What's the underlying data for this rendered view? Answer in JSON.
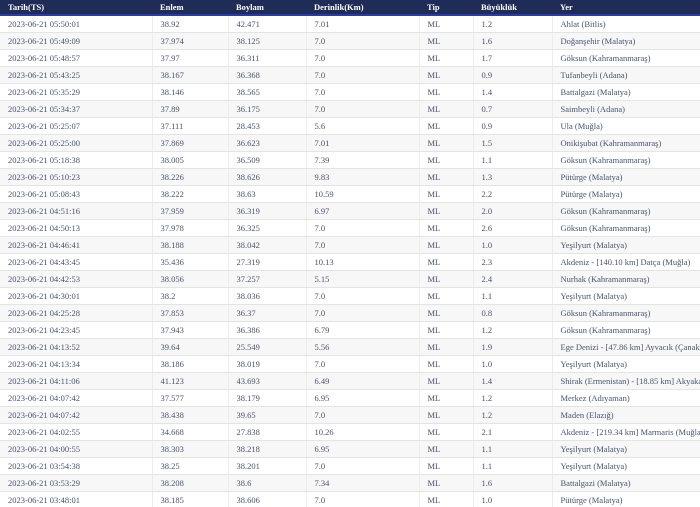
{
  "table": {
    "columns": [
      {
        "key": "tarih",
        "label": "Tarih(TS)"
      },
      {
        "key": "enlem",
        "label": "Enlem"
      },
      {
        "key": "boylam",
        "label": "Boylam"
      },
      {
        "key": "derinlik",
        "label": "Derinlik(Km)"
      },
      {
        "key": "tip",
        "label": "Tip"
      },
      {
        "key": "buyukluk",
        "label": "Büyüklük"
      },
      {
        "key": "yer",
        "label": "Yer"
      }
    ],
    "rows": [
      [
        "2023-06-21 05:50:01",
        "38.92",
        "42.471",
        "7.01",
        "ML",
        "1.2",
        "Ahlat (Bitlis)"
      ],
      [
        "2023-06-21 05:49:09",
        "37.974",
        "38.125",
        "7.0",
        "ML",
        "1.6",
        "Doğanşehir (Malatya)"
      ],
      [
        "2023-06-21 05:48:57",
        "37.97",
        "36.311",
        "7.0",
        "ML",
        "1.7",
        "Göksun (Kahramanmaraş)"
      ],
      [
        "2023-06-21 05:43:25",
        "38.167",
        "36.368",
        "7.0",
        "ML",
        "0.9",
        "Tufanbeyli (Adana)"
      ],
      [
        "2023-06-21 05:35:29",
        "38.146",
        "38.565",
        "7.0",
        "ML",
        "1.4",
        "Battalgazi (Malatya)"
      ],
      [
        "2023-06-21 05:34:37",
        "37.89",
        "36.175",
        "7.0",
        "ML",
        "0.7",
        "Saimbeyli (Adana)"
      ],
      [
        "2023-06-21 05:25:07",
        "37.111",
        "28.453",
        "5.6",
        "ML",
        "0.9",
        "Ula (Muğla)"
      ],
      [
        "2023-06-21 05:25:00",
        "37.869",
        "36.623",
        "7.01",
        "ML",
        "1.5",
        "Onikişubat (Kahramanmaraş)"
      ],
      [
        "2023-06-21 05:18:38",
        "38.005",
        "36.509",
        "7.39",
        "ML",
        "1.1",
        "Göksun (Kahramanmaraş)"
      ],
      [
        "2023-06-21 05:10:23",
        "38.226",
        "38.626",
        "9.83",
        "ML",
        "1.3",
        "Pütürge (Malatya)"
      ],
      [
        "2023-06-21 05:08:43",
        "38.222",
        "38.63",
        "10.59",
        "ML",
        "2.2",
        "Pütürge (Malatya)"
      ],
      [
        "2023-06-21 04:51:16",
        "37.959",
        "36.319",
        "6.97",
        "ML",
        "2.0",
        "Göksun (Kahramanmaraş)"
      ],
      [
        "2023-06-21 04:50:13",
        "37.978",
        "36.325",
        "7.0",
        "ML",
        "2.6",
        "Göksun (Kahramanmaraş)"
      ],
      [
        "2023-06-21 04:46:41",
        "38.188",
        "38.042",
        "7.0",
        "ML",
        "1.0",
        "Yeşilyurt (Malatya)"
      ],
      [
        "2023-06-21 04:43:45",
        "35.436",
        "27.319",
        "10.13",
        "ML",
        "2.3",
        "Akdeniz - [140.10 km] Datça (Muğla)"
      ],
      [
        "2023-06-21 04:42:53",
        "38.056",
        "37.257",
        "5.15",
        "ML",
        "2.4",
        "Nurhak (Kahramanmaraş)"
      ],
      [
        "2023-06-21 04:30:01",
        "38.2",
        "38.036",
        "7.0",
        "ML",
        "1.1",
        "Yeşilyurt (Malatya)"
      ],
      [
        "2023-06-21 04:25:28",
        "37.853",
        "36.37",
        "7.0",
        "ML",
        "0.8",
        "Göksun (Kahramanmaraş)"
      ],
      [
        "2023-06-21 04:23:45",
        "37.943",
        "36.386",
        "6.79",
        "ML",
        "1.2",
        "Göksun (Kahramanmaraş)"
      ],
      [
        "2023-06-21 04:13:52",
        "39.64",
        "25.549",
        "5.56",
        "ML",
        "1.9",
        "Ege Denizi - [47.86 km] Ayvacık (Çanakkale)"
      ],
      [
        "2023-06-21 04:13:34",
        "38.186",
        "38.019",
        "7.0",
        "ML",
        "1.0",
        "Yeşilyurt (Malatya)"
      ],
      [
        "2023-06-21 04:11:06",
        "41.123",
        "43.693",
        "6.49",
        "ML",
        "1.4",
        "Shirak (Ermenistan) - [18.85 km] Akyaka (Kars)"
      ],
      [
        "2023-06-21 04:07:42",
        "37.577",
        "38.179",
        "6.95",
        "ML",
        "1.2",
        "Merkez (Adıyaman)"
      ],
      [
        "2023-06-21 04:07:42",
        "38.438",
        "39.65",
        "7.0",
        "ML",
        "1.2",
        "Maden (Elazığ)"
      ],
      [
        "2023-06-21 04:02:55",
        "34.668",
        "27.838",
        "10.26",
        "ML",
        "2.1",
        "Akdeniz - [219.34 km] Marmaris (Muğla)"
      ],
      [
        "2023-06-21 04:00:55",
        "38.303",
        "38.218",
        "6.95",
        "ML",
        "1.1",
        "Yeşilyurt (Malatya)"
      ],
      [
        "2023-06-21 03:54:38",
        "38.25",
        "38.201",
        "7.0",
        "ML",
        "1.1",
        "Yeşilyurt (Malatya)"
      ],
      [
        "2023-06-21 03:53:29",
        "38.208",
        "38.6",
        "7.34",
        "ML",
        "1.6",
        "Battalgazi (Malatya)"
      ],
      [
        "2023-06-21 03:48:01",
        "38.185",
        "38.606",
        "7.0",
        "ML",
        "1.0",
        "Pütürge (Malatya)"
      ]
    ]
  },
  "colors": {
    "header_bg": "#1f2c58",
    "header_border": "#2c3b9c",
    "header_text": "#ffffff",
    "row_alt_bg": "#f7f7f7",
    "row_border": "#e4e4e4",
    "cell_text": "#47536e"
  }
}
